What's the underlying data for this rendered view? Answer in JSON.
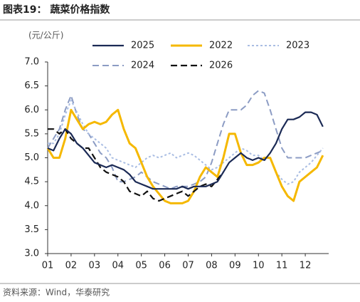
{
  "chart_data": {
    "type": "line",
    "title": "图表19：  蔬菜价格指数",
    "y_label": "(元/公斤)",
    "source": "资料来源：Wind，华泰研究",
    "categories": [
      "01",
      null,
      null,
      null,
      "02",
      null,
      null,
      null,
      "03",
      null,
      null,
      null,
      "04",
      null,
      null,
      null,
      "05",
      null,
      null,
      null,
      "06",
      null,
      null,
      null,
      "07",
      null,
      null,
      null,
      "08",
      null,
      null,
      null,
      "09",
      null,
      null,
      null,
      "10",
      null,
      null,
      null,
      "11",
      null,
      null,
      null,
      "12",
      null,
      null,
      null
    ],
    "ylim": [
      3.0,
      7.0
    ],
    "yticks": [
      {
        "value": 3,
        "label": "3.0"
      },
      3.5,
      {
        "value": 4,
        "label": "4.0"
      },
      4.5,
      {
        "value": 5,
        "label": "5.0"
      },
      5.5,
      {
        "value": 6,
        "label": "6.0"
      },
      6.5,
      {
        "value": 7,
        "label": "7.0"
      }
    ],
    "grid": false,
    "series": [
      {
        "name": "2025",
        "color": "#1b2a55",
        "dash": "solid",
        "linewidth": 2.2,
        "values": [
          5.2,
          5.15,
          5.4,
          5.6,
          5.5,
          5.3,
          5.2,
          5.05,
          4.9,
          4.85,
          4.8,
          4.85,
          4.8,
          4.75,
          4.65,
          4.5,
          4.45,
          4.4,
          4.35,
          4.35,
          4.35,
          4.35,
          4.35,
          4.4,
          4.35,
          4.4,
          4.4,
          4.4,
          4.45,
          4.5,
          4.7,
          4.9,
          5.0,
          5.1,
          5.0,
          4.95,
          5.0,
          4.95,
          5.1,
          5.3,
          5.6,
          5.8,
          5.8,
          5.85,
          5.95,
          5.95,
          5.9,
          5.65
        ]
      },
      {
        "name": "2022",
        "color": "#f5b800",
        "dash": "solid",
        "linewidth": 3,
        "values": [
          5.2,
          5.0,
          5.0,
          5.4,
          6.0,
          5.8,
          5.6,
          5.7,
          5.75,
          5.7,
          5.75,
          5.9,
          6.0,
          5.6,
          5.3,
          5.2,
          4.9,
          4.6,
          4.4,
          4.25,
          4.1,
          4.05,
          4.05,
          4.05,
          4.1,
          4.3,
          4.6,
          4.8,
          4.7,
          4.6,
          5.0,
          5.5,
          5.5,
          5.1,
          4.85,
          4.85,
          4.9,
          5.0,
          5.0,
          4.7,
          4.4,
          4.2,
          4.1,
          4.5,
          4.6,
          4.7,
          4.8,
          5.05
        ]
      },
      {
        "name": "2023",
        "color": "#a9bde3",
        "dash": "dotted",
        "linewidth": 2,
        "values": [
          5.3,
          5.3,
          5.5,
          5.9,
          6.2,
          5.95,
          5.7,
          5.5,
          5.4,
          5.3,
          5.2,
          5.0,
          4.95,
          4.9,
          4.85,
          4.8,
          4.9,
          5.0,
          5.05,
          5.0,
          5.05,
          5.1,
          5.0,
          5.05,
          5.1,
          5.05,
          4.95,
          4.85,
          4.75,
          4.8,
          4.9,
          5.0,
          5.1,
          5.2,
          5.15,
          5.05,
          5.05,
          4.95,
          5.0,
          4.7,
          4.55,
          4.45,
          4.5,
          4.7,
          4.8,
          4.9,
          5.05,
          5.2
        ]
      },
      {
        "name": "2024",
        "color": "#8c9cc4",
        "dash": "dashed",
        "linewidth": 2,
        "values": [
          5.2,
          5.4,
          5.6,
          6.0,
          6.3,
          5.9,
          5.6,
          5.5,
          5.3,
          5.1,
          5.0,
          4.8,
          4.5,
          4.5,
          4.55,
          4.6,
          4.7,
          4.6,
          4.5,
          4.45,
          4.4,
          4.35,
          4.4,
          4.4,
          4.4,
          4.45,
          4.5,
          4.6,
          4.9,
          5.3,
          5.7,
          6.0,
          6.0,
          6.0,
          6.1,
          6.3,
          6.4,
          6.35,
          6.0,
          5.6,
          5.2,
          5.0,
          5.0,
          5.0,
          5.0,
          5.05,
          5.1,
          5.15
        ]
      },
      {
        "name": "2026",
        "color": "#111111",
        "dash": "dashed",
        "linewidth": 2.2,
        "values": [
          5.6,
          5.6,
          5.5,
          5.6,
          5.4,
          5.3,
          5.2,
          5.2,
          5.0,
          4.8,
          4.7,
          4.65,
          4.6,
          4.5,
          4.3,
          4.25,
          4.2,
          4.3,
          4.15,
          4.1,
          4.15,
          4.2,
          4.25,
          4.3,
          4.2,
          4.3,
          4.4,
          4.45,
          4.4,
          4.55,
          4.7,
          null,
          null,
          null,
          null,
          null,
          null,
          null,
          null,
          null,
          null,
          null,
          null,
          null,
          null,
          null,
          null,
          null
        ]
      }
    ]
  }
}
